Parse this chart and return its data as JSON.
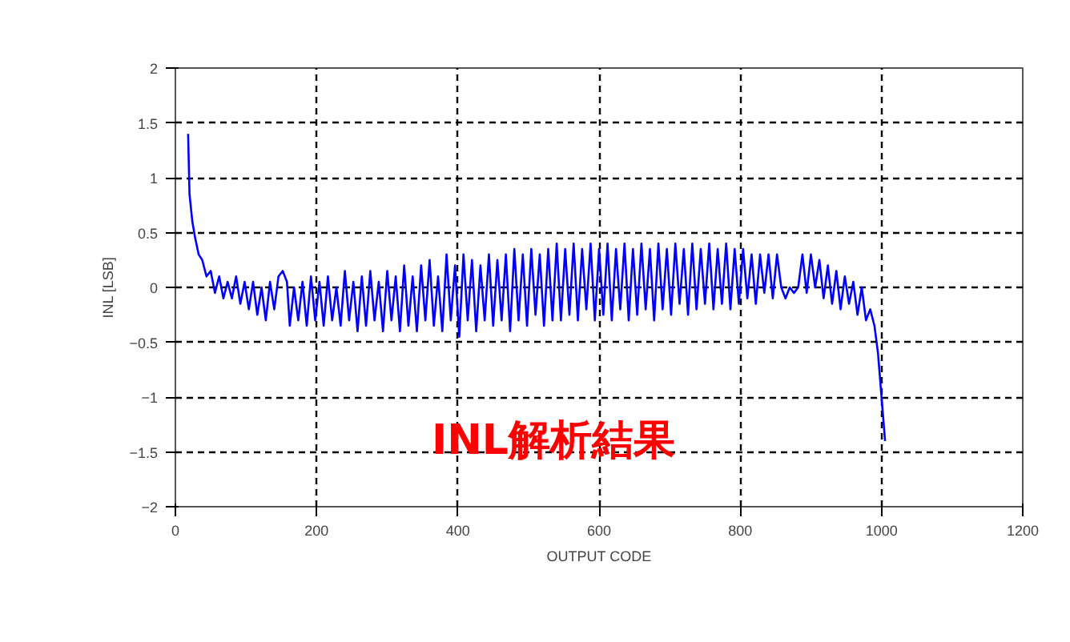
{
  "chart_data": {
    "type": "line",
    "xlabel": "OUTPUT CODE",
    "ylabel": "INL [LSB]",
    "annotations": [
      "INL解析結果"
    ],
    "xlim": [
      0,
      1200
    ],
    "xticks": [
      0,
      200,
      400,
      600,
      800,
      1000,
      1200
    ],
    "ylim": [
      -2,
      2
    ],
    "yticks": [
      -2,
      -1.5,
      -1,
      -0.5,
      0,
      0.5,
      1,
      1.5,
      2
    ],
    "grid": true,
    "marker": "none",
    "line_style": "solid",
    "series": [
      {
        "color": "#0000ff",
        "x": [
          18,
          20,
          24,
          28,
          33,
          38,
          44,
          50,
          56,
          62,
          68,
          74,
          80,
          86,
          92,
          98,
          104,
          110,
          116,
          122,
          128,
          134,
          140,
          146,
          152,
          158,
          162,
          168,
          174,
          180,
          186,
          192,
          198,
          204,
          210,
          216,
          222,
          228,
          234,
          240,
          246,
          252,
          258,
          264,
          270,
          276,
          282,
          288,
          294,
          300,
          306,
          312,
          318,
          324,
          330,
          336,
          342,
          348,
          354,
          360,
          366,
          372,
          378,
          384,
          390,
          396,
          402,
          408,
          414,
          420,
          426,
          432,
          438,
          444,
          450,
          456,
          462,
          468,
          474,
          480,
          486,
          492,
          498,
          504,
          510,
          516,
          522,
          528,
          534,
          540,
          546,
          552,
          558,
          564,
          570,
          576,
          582,
          588,
          594,
          600,
          606,
          612,
          618,
          624,
          630,
          636,
          642,
          648,
          654,
          660,
          666,
          672,
          678,
          684,
          690,
          696,
          702,
          708,
          714,
          720,
          726,
          732,
          738,
          744,
          750,
          756,
          762,
          768,
          774,
          780,
          786,
          792,
          798,
          804,
          810,
          816,
          822,
          828,
          834,
          840,
          846,
          852,
          858,
          864,
          870,
          876,
          882,
          888,
          894,
          900,
          906,
          912,
          918,
          924,
          930,
          936,
          942,
          948,
          954,
          960,
          966,
          972,
          978,
          984,
          990,
          995,
          1000,
          1005
        ],
        "values": [
          1.4,
          0.85,
          0.6,
          0.45,
          0.3,
          0.25,
          0.1,
          0.15,
          -0.05,
          0.1,
          -0.1,
          0.05,
          -0.1,
          0.1,
          -0.15,
          0.05,
          -0.2,
          0.05,
          -0.25,
          0.0,
          -0.3,
          0.05,
          -0.2,
          0.1,
          0.15,
          0.05,
          -0.35,
          0.0,
          -0.3,
          0.05,
          -0.35,
          0.1,
          -0.3,
          0.05,
          -0.35,
          0.1,
          -0.3,
          0.0,
          -0.35,
          0.15,
          -0.3,
          0.05,
          -0.4,
          0.1,
          -0.35,
          0.15,
          -0.3,
          0.05,
          -0.4,
          0.15,
          -0.3,
          0.1,
          -0.4,
          0.2,
          -0.35,
          0.1,
          -0.4,
          0.2,
          -0.3,
          0.25,
          -0.35,
          0.1,
          -0.4,
          0.3,
          -0.3,
          0.2,
          -0.45,
          0.3,
          -0.3,
          0.25,
          -0.4,
          0.2,
          -0.3,
          0.3,
          -0.35,
          0.25,
          -0.3,
          0.3,
          -0.4,
          0.35,
          -0.3,
          0.3,
          -0.35,
          0.35,
          -0.25,
          0.3,
          -0.35,
          0.35,
          -0.3,
          0.4,
          -0.3,
          0.35,
          -0.25,
          0.4,
          -0.3,
          0.35,
          -0.2,
          0.4,
          -0.3,
          0.35,
          -0.25,
          0.4,
          -0.3,
          0.35,
          -0.2,
          0.4,
          -0.3,
          0.35,
          -0.25,
          0.4,
          -0.2,
          0.35,
          -0.3,
          0.4,
          -0.2,
          0.35,
          -0.25,
          0.4,
          -0.15,
          0.35,
          -0.25,
          0.4,
          -0.2,
          0.35,
          -0.15,
          0.4,
          -0.2,
          0.35,
          -0.15,
          0.4,
          -0.2,
          0.35,
          -0.15,
          0.35,
          -0.1,
          0.3,
          -0.15,
          0.3,
          -0.05,
          0.3,
          -0.1,
          0.3,
          0.0,
          -0.1,
          0.0,
          -0.05,
          0.0,
          0.3,
          -0.05,
          0.3,
          0.0,
          0.25,
          -0.1,
          0.2,
          -0.15,
          0.15,
          -0.2,
          0.1,
          -0.15,
          0.05,
          -0.25,
          0.0,
          -0.3,
          -0.2,
          -0.35,
          -0.6,
          -1.0,
          -1.4
        ]
      }
    ]
  }
}
